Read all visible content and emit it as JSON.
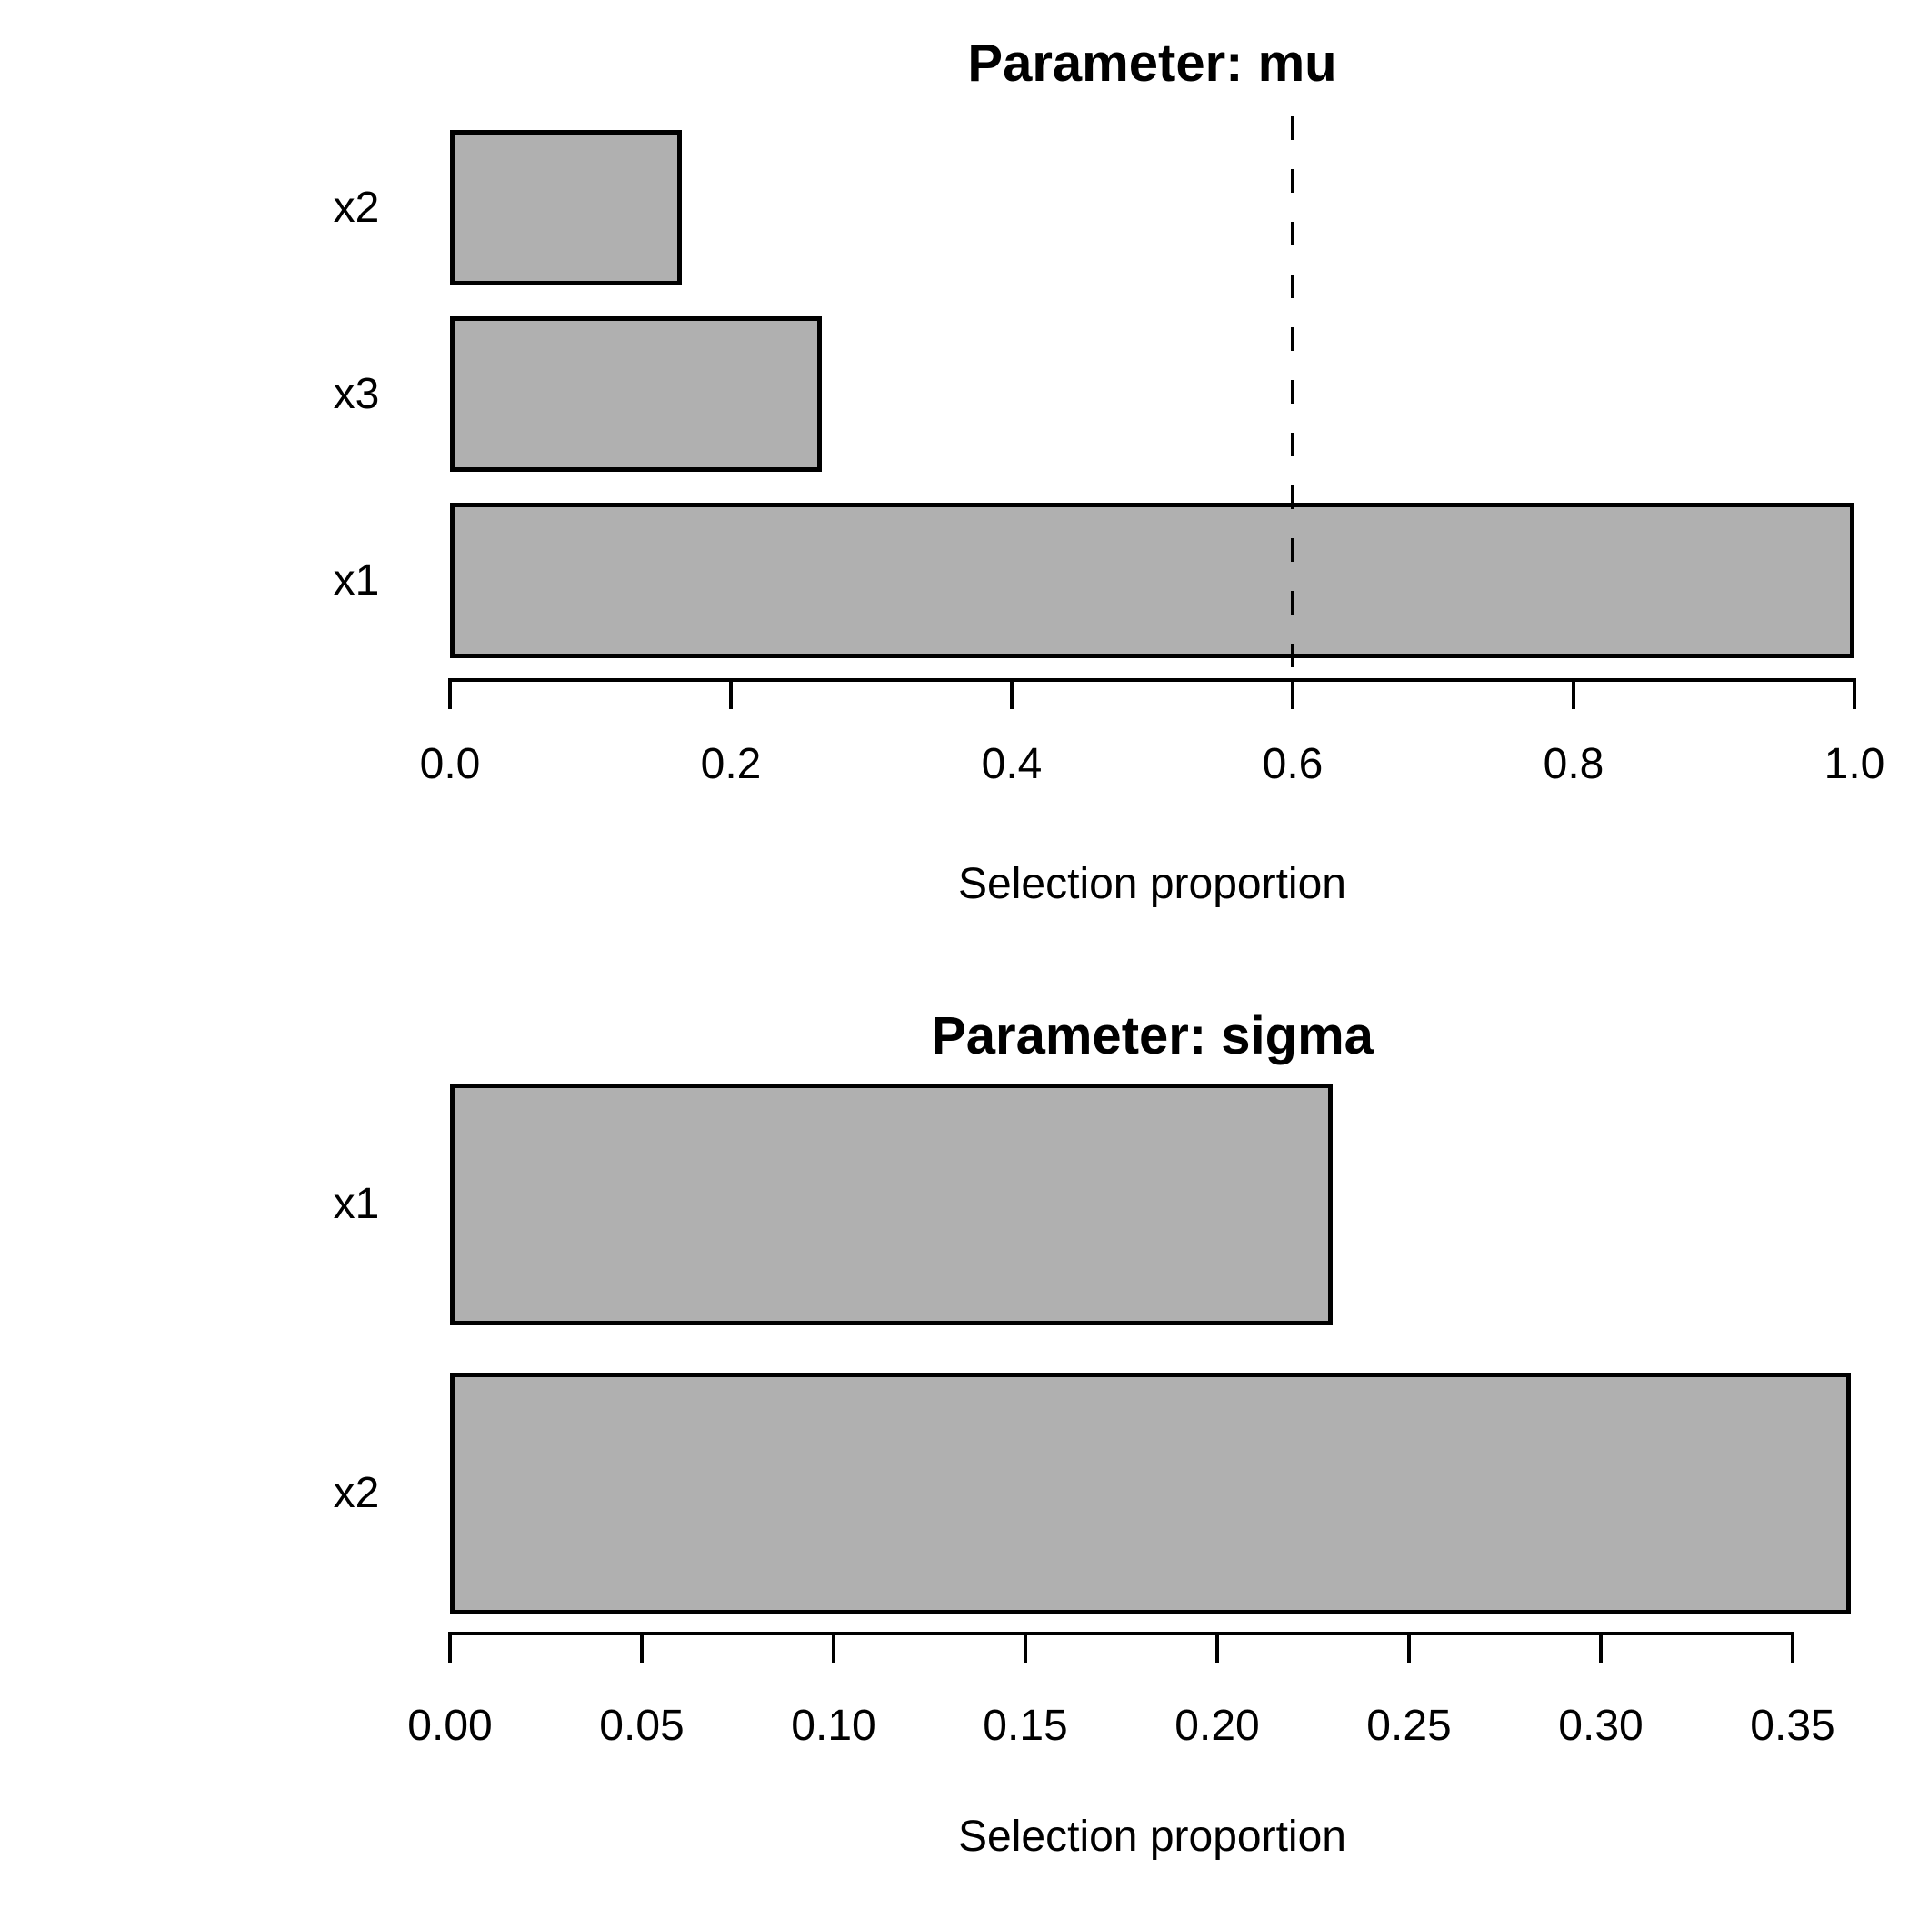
{
  "figure": {
    "background_color": "#ffffff",
    "bar_fill_color": "#b0b0b0",
    "bar_border_color": "#000000",
    "axis_color": "#000000",
    "text_color": "#000000"
  },
  "chart_data": [
    {
      "type": "bar",
      "orientation": "horizontal",
      "title": "Parameter: mu",
      "xlabel": "Selection proportion",
      "categories": [
        "x2",
        "x3",
        "x1"
      ],
      "values": [
        0.165,
        0.265,
        1.0
      ],
      "xlim": [
        0,
        1.0
      ],
      "ticks": [
        0,
        0.2,
        0.4,
        0.6,
        0.8,
        1.0
      ],
      "tick_labels": [
        "0.0",
        "0.2",
        "0.4",
        "0.6",
        "0.8",
        "1.0"
      ],
      "threshold_line": {
        "value": 0.6,
        "style": "dashed",
        "color": "#000000"
      },
      "grid": false,
      "legend": null
    },
    {
      "type": "bar",
      "orientation": "horizontal",
      "title": "Parameter: sigma",
      "xlabel": "Selection proportion",
      "categories": [
        "x1",
        "x2"
      ],
      "values": [
        0.23,
        0.365
      ],
      "xlim": [
        0,
        0.366
      ],
      "ticks": [
        0,
        0.05,
        0.1,
        0.15,
        0.2,
        0.25,
        0.3,
        0.35
      ],
      "tick_labels": [
        "0.00",
        "0.05",
        "0.10",
        "0.15",
        "0.20",
        "0.25",
        "0.30",
        "0.35"
      ],
      "threshold_line": null,
      "grid": false,
      "legend": null
    }
  ]
}
